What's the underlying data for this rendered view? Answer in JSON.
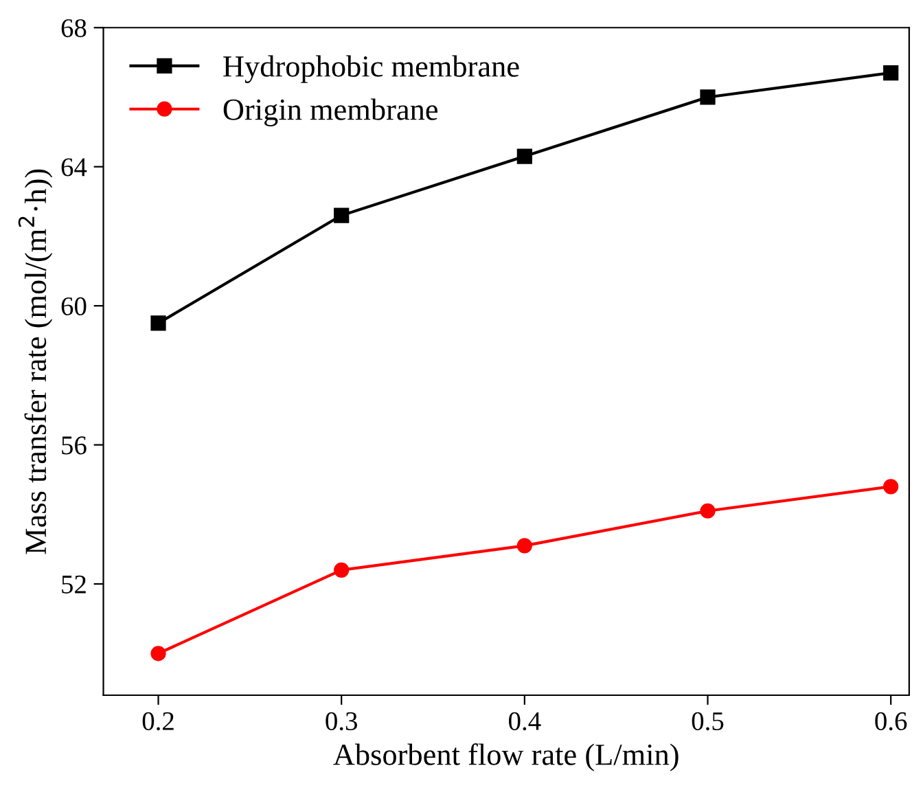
{
  "chart_data": {
    "type": "line",
    "xlabel": "Absorbent flow rate (L/min)",
    "ylabel": "Mass transfer rate (mol/(m$^{2}$·h))",
    "x": [
      0.2,
      0.3,
      0.4,
      0.5,
      0.6
    ],
    "series": [
      {
        "name": "Hydrophobic membrane",
        "color": "#000000",
        "marker": "square",
        "values": [
          59.5,
          62.6,
          64.3,
          66.0,
          66.7
        ]
      },
      {
        "name": "Origin membrane",
        "color": "#ff0000",
        "marker": "circle",
        "values": [
          50.0,
          52.4,
          53.1,
          54.1,
          54.8
        ]
      }
    ],
    "xlim": [
      0.17,
      0.61
    ],
    "ylim": [
      48.8,
      68
    ],
    "xticks": [
      0.2,
      0.3,
      0.4,
      0.5,
      0.6
    ],
    "yticks": [
      52,
      56,
      60,
      64,
      68
    ],
    "grid": false,
    "legend": "top left",
    "line_style": "solid"
  }
}
